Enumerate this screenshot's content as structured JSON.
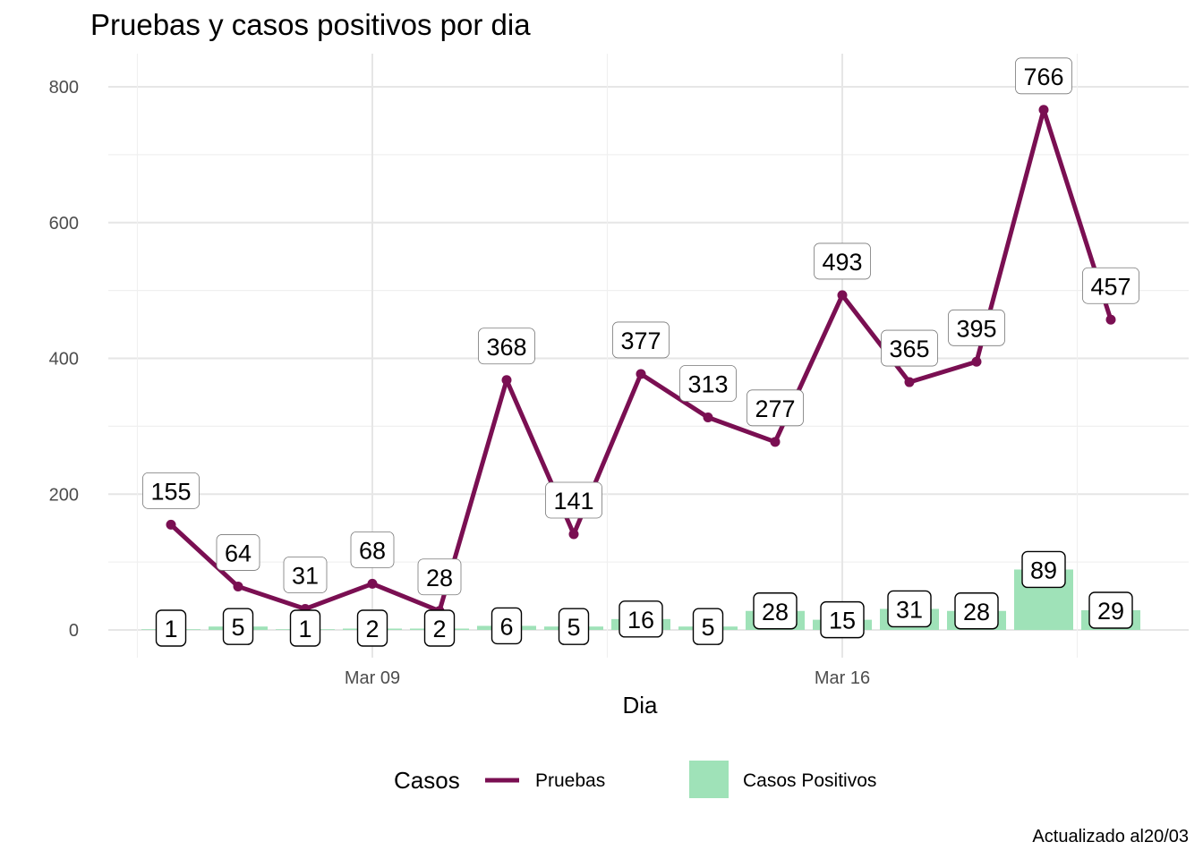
{
  "chart_data": {
    "type": "line+bar",
    "title": "Pruebas y casos positivos por dia",
    "xlabel": "Dia",
    "ylabel": "",
    "caption": "Actualizado al20/03",
    "x": [
      "2020-03-06",
      "2020-03-07",
      "2020-03-08",
      "2020-03-09",
      "2020-03-10",
      "2020-03-11",
      "2020-03-12",
      "2020-03-13",
      "2020-03-14",
      "2020-03-15",
      "2020-03-16",
      "2020-03-17",
      "2020-03-18",
      "2020-03-19",
      "2020-03-20"
    ],
    "x_ticks": [
      {
        "date": "2020-03-09",
        "label": "Mar 09"
      },
      {
        "date": "2020-03-16",
        "label": "Mar 16"
      }
    ],
    "ylim": [
      0,
      800
    ],
    "y_ticks": [
      0,
      200,
      400,
      600,
      800
    ],
    "grid": true,
    "legend_position": "bottom",
    "legend_title": "Casos",
    "series": [
      {
        "name": "Pruebas",
        "kind": "line",
        "color": "#7a0f52",
        "values": [
          155,
          64,
          31,
          68,
          28,
          368,
          141,
          377,
          313,
          277,
          493,
          365,
          395,
          766,
          457
        ]
      },
      {
        "name": "Casos Positivos",
        "kind": "bar",
        "color": "#9fe2b8",
        "values": [
          1,
          5,
          1,
          2,
          2,
          6,
          5,
          16,
          5,
          28,
          15,
          31,
          28,
          89,
          29
        ]
      }
    ]
  }
}
